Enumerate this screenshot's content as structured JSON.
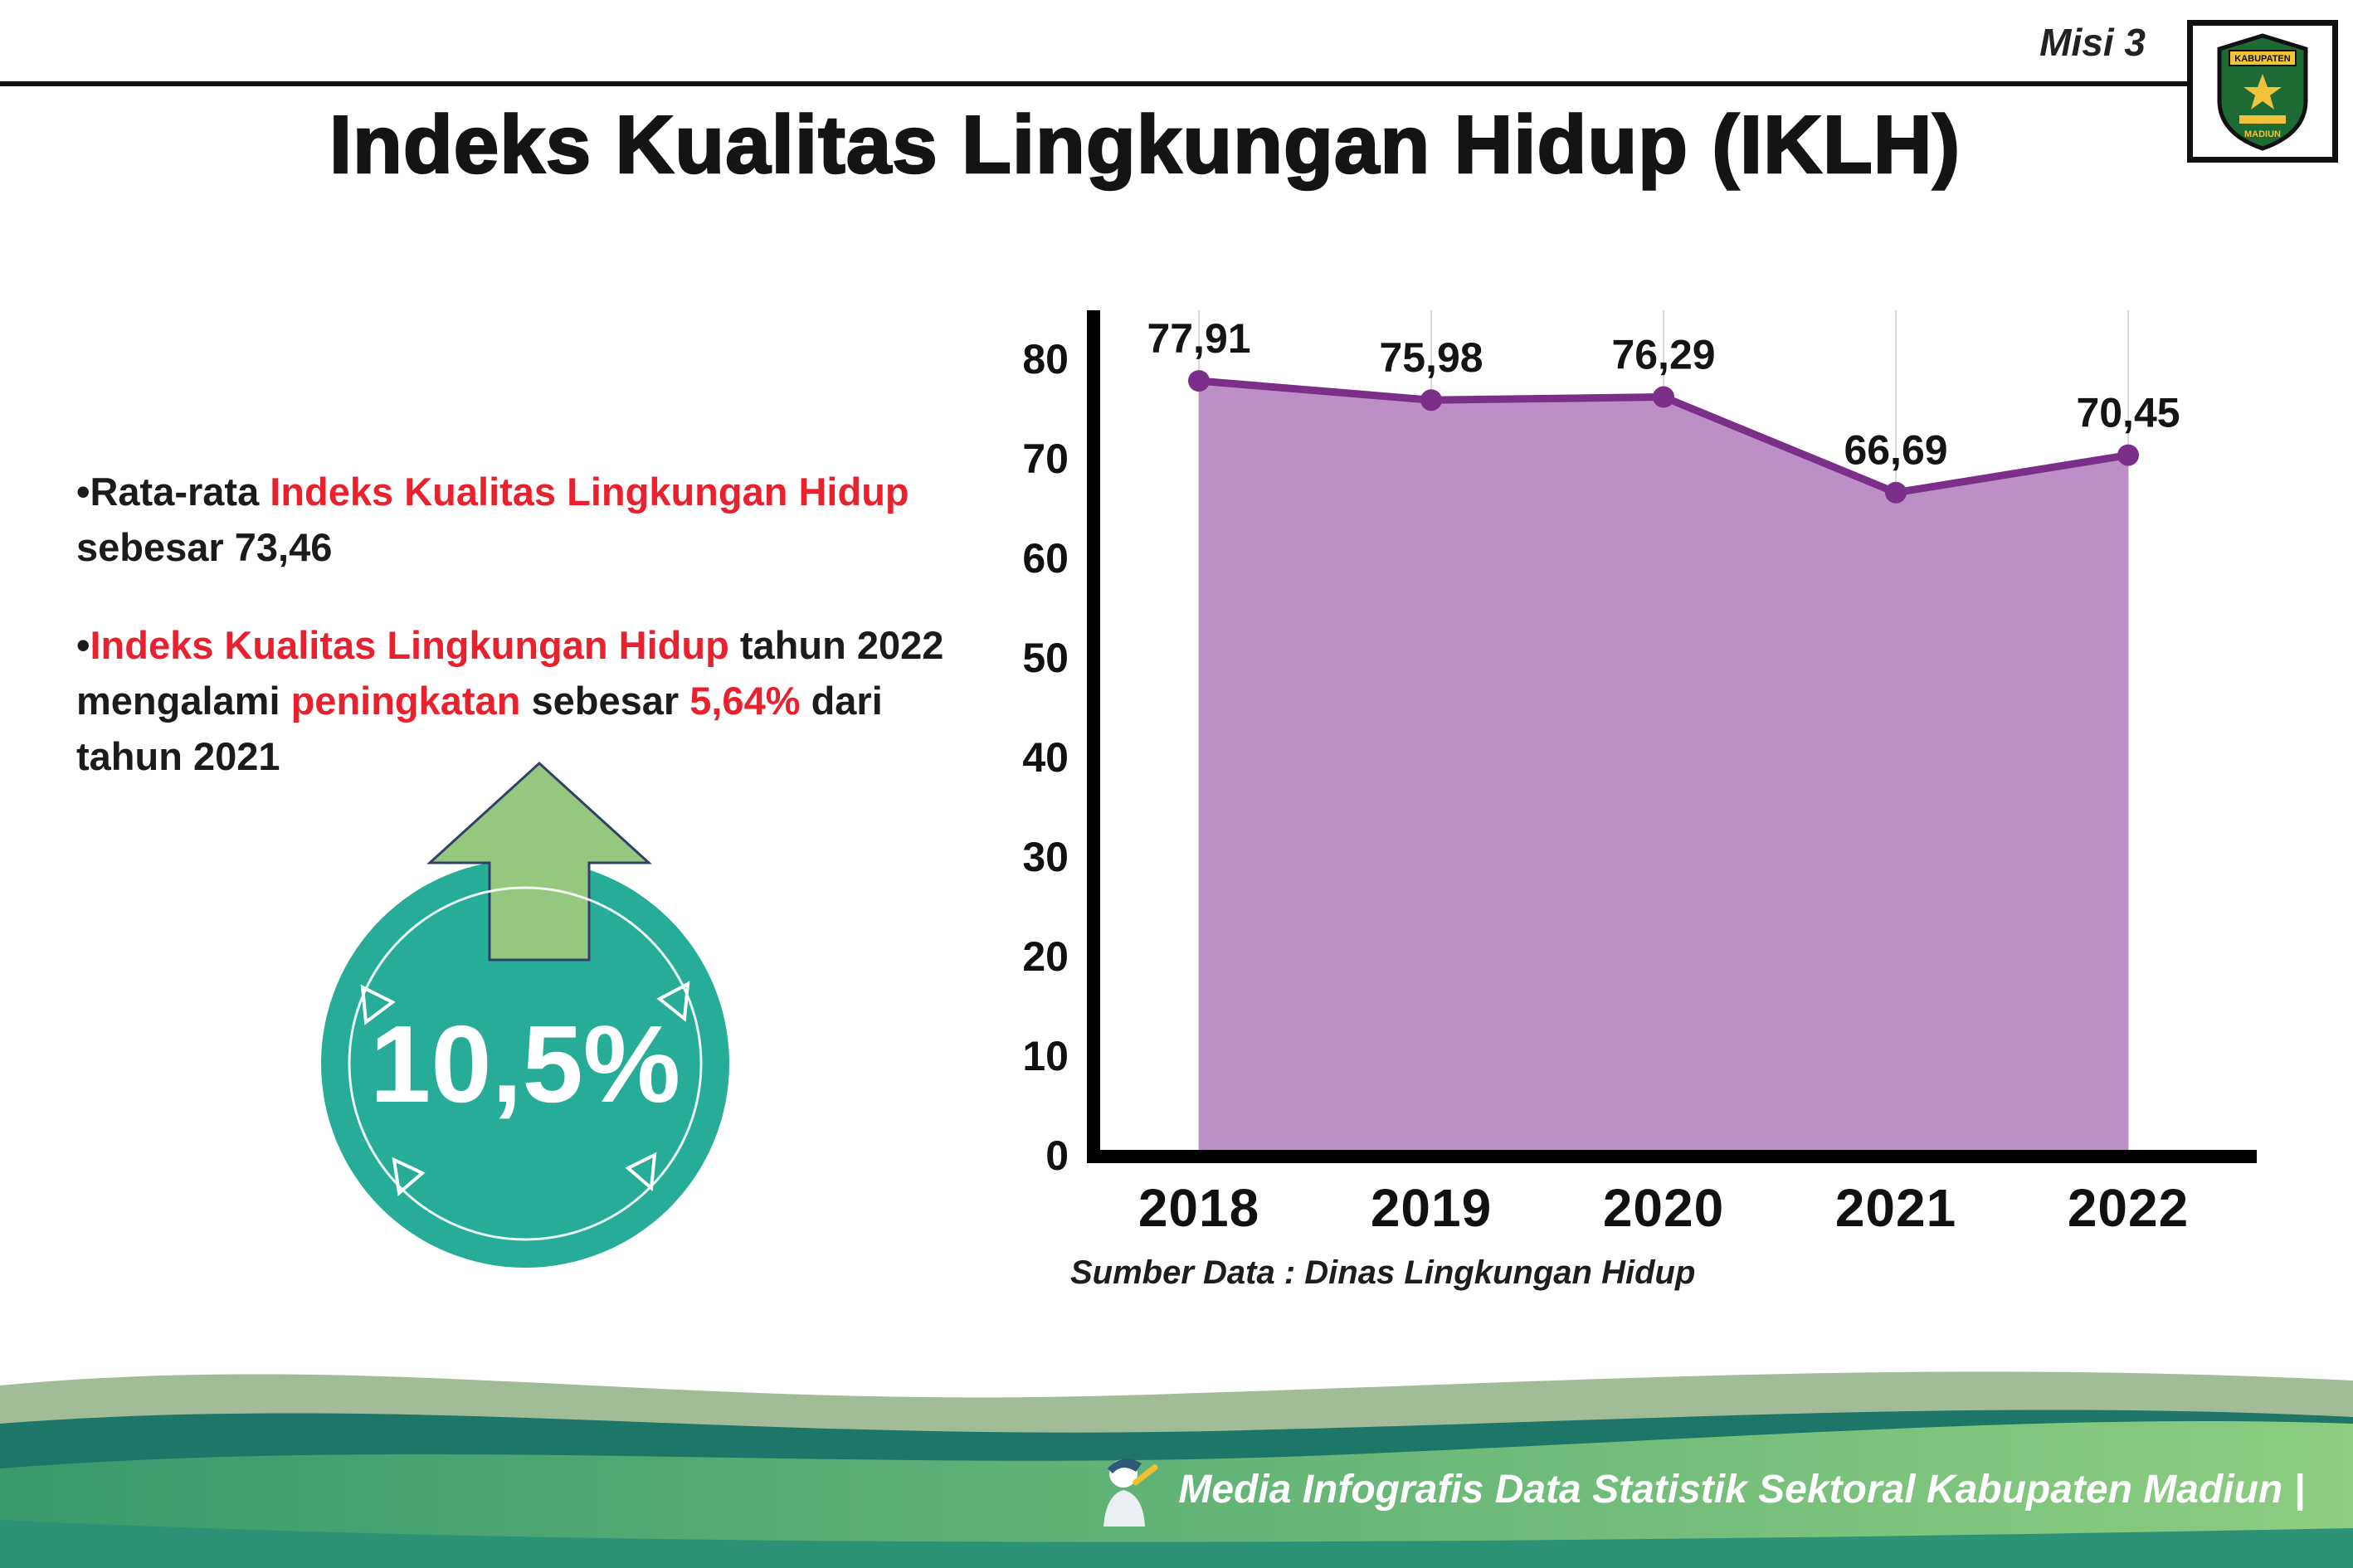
{
  "header": {
    "misi_label": "Misi 3",
    "title": "Indeks Kualitas Lingkungan Hidup (IKLH)"
  },
  "logo": {
    "top_text": "KABUPATEN",
    "bottom_text": "MADIUN"
  },
  "insights": {
    "bullet1": {
      "marker": "•",
      "prefix": "Rata-rata ",
      "highlight": "Indeks Kualitas Lingkungan Hidup",
      "suffix": " sebesar 73,46"
    },
    "bullet2": {
      "marker": "•",
      "highlight1": "Indeks Kualitas Lingkungan Hidup",
      "text1": " tahun 2022 mengalami ",
      "highlight2": "peningkatan",
      "text2": " sebesar ",
      "highlight3": "5,64%",
      "text3": " dari tahun 2021"
    },
    "badge_value": "10,5%",
    "badge_trend": "up"
  },
  "chart_data": {
    "type": "area",
    "title": "Indeks Kualitas Lingkungan Hidup (IKLH)",
    "categories": [
      "2018",
      "2019",
      "2020",
      "2021",
      "2022"
    ],
    "values": [
      77.91,
      75.98,
      76.29,
      66.69,
      70.45
    ],
    "point_labels": [
      "77,91",
      "75,98",
      "76,29",
      "66,69",
      "70,45"
    ],
    "ylim": [
      0,
      80
    ],
    "yticks": [
      0,
      10,
      20,
      30,
      40,
      50,
      60,
      70,
      80
    ],
    "grid": "vertical",
    "legend": "none",
    "line_color": "#7c2f88",
    "point_color": "#7c2f88",
    "fill_color": "#bc8fc7",
    "axis_color": "#000000",
    "source": "Sumber Data : Dinas Lingkungan Hidup"
  },
  "footer": {
    "credit": "Media Infografis Data Statistik Sektoral Kabupaten Madiun |"
  },
  "colors": {
    "accent_red": "#e8212e",
    "badge_teal": "#27ad97",
    "arrow_green": "#93c87e",
    "line_purple": "#7c2f88",
    "area_mauve": "#bc8fc7",
    "footer_green": "#8ccd80",
    "footer_teal": "#1e7668"
  }
}
